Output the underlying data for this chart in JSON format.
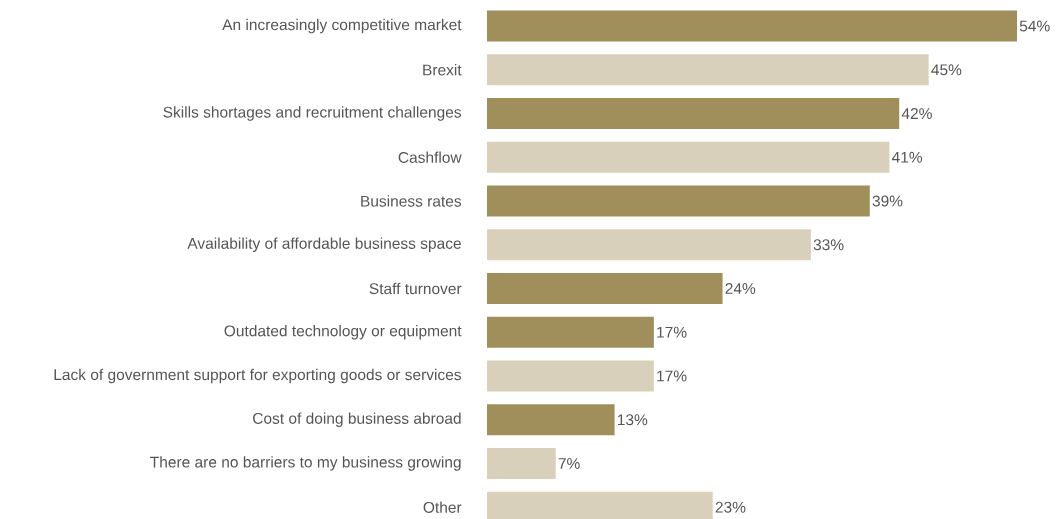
{
  "chart_data": {
    "type": "bar",
    "orientation": "horizontal",
    "categories": [
      "An increasingly competitive market",
      "Brexit",
      "Skills shortages and recruitment challenges",
      "Cashflow",
      "Business rates",
      "Availability of affordable business space",
      "Staff turnover",
      "Outdated technology or equipment",
      "Lack of government support for exporting goods or services",
      "Cost of doing business abroad",
      "There are no barriers to my business growing",
      "Other"
    ],
    "values": [
      54,
      45,
      42,
      41,
      39,
      33,
      24,
      17,
      17,
      13,
      7,
      23
    ],
    "value_labels": [
      "54%",
      "45%",
      "42%",
      "41%",
      "39%",
      "33%",
      "24%",
      "17%",
      "17%",
      "13%",
      "7%",
      "23%"
    ],
    "colors": [
      "#a08f5b",
      "#d9d0bb",
      "#a08f5b",
      "#d9d0bb",
      "#a08f5b",
      "#d9d0bb",
      "#a08f5b",
      "#a08f5b",
      "#d9d0bb",
      "#a08f5b",
      "#d9d0bb",
      "#d9d0bb"
    ]
  }
}
